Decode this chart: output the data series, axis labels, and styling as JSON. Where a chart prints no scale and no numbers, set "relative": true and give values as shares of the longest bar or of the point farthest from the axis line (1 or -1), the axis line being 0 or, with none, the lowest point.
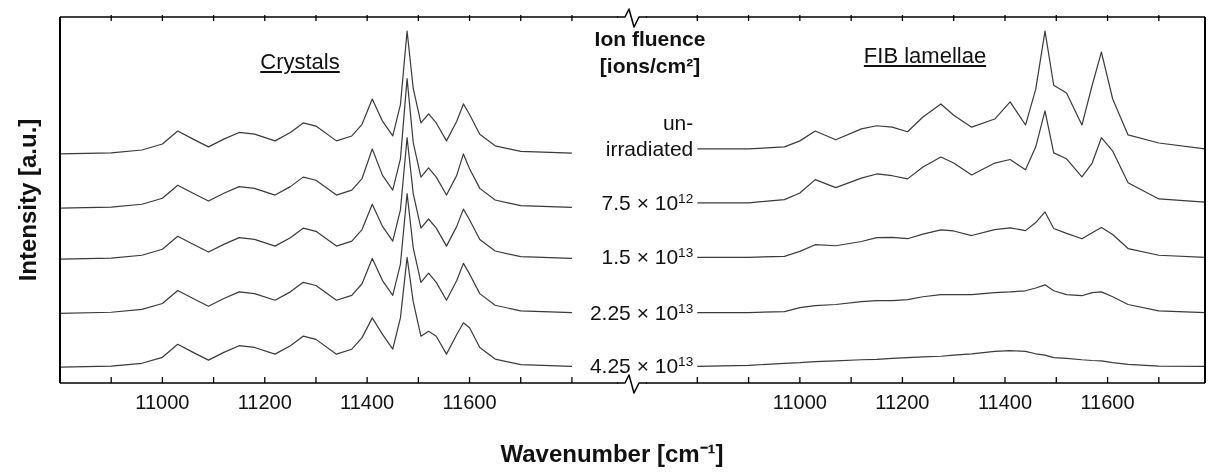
{
  "chart_data": [
    {
      "type": "line",
      "title": "Crystals",
      "xlabel": "Wavenumber [cm⁻¹]",
      "ylabel": "Intensity [a.u.]",
      "relative": true,
      "xlim": [
        10800,
        11890
      ],
      "xticks": [
        {
          "value": 10900,
          "label": null
        },
        11000,
        {
          "value": 11100,
          "label": null
        },
        11200,
        {
          "value": 11300,
          "label": null
        },
        11400,
        {
          "value": 11500,
          "label": null
        },
        11600,
        {
          "value": 11700,
          "label": null
        },
        {
          "value": 11800,
          "label": null
        }
      ],
      "x": [
        10800,
        10900,
        10960,
        11000,
        11030,
        11060,
        11090,
        11120,
        11150,
        11180,
        11220,
        11250,
        11275,
        11300,
        11340,
        11370,
        11390,
        11410,
        11430,
        11450,
        11465,
        11478,
        11490,
        11505,
        11520,
        11535,
        11555,
        11575,
        11588,
        11600,
        11620,
        11650,
        11700,
        11800
      ],
      "series": [
        {
          "color": "#3a3a3a",
          "values": [
            0.651,
            0.654,
            0.662,
            0.679,
            0.716,
            0.693,
            0.671,
            0.693,
            0.712,
            0.707,
            0.688,
            0.712,
            0.739,
            0.73,
            0.688,
            0.702,
            0.735,
            0.807,
            0.744,
            0.702,
            0.791,
            1.0,
            0.837,
            0.739,
            0.765,
            0.739,
            0.688,
            0.744,
            0.793,
            0.763,
            0.707,
            0.674,
            0.658,
            0.653
          ]
        },
        {
          "color": "#3a3a3a",
          "values": [
            0.497,
            0.5,
            0.508,
            0.525,
            0.562,
            0.539,
            0.517,
            0.539,
            0.558,
            0.553,
            0.534,
            0.558,
            0.585,
            0.576,
            0.534,
            0.548,
            0.581,
            0.665,
            0.59,
            0.548,
            0.637,
            0.865,
            0.683,
            0.585,
            0.611,
            0.585,
            0.534,
            0.59,
            0.651,
            0.609,
            0.553,
            0.52,
            0.504,
            0.499
          ]
        },
        {
          "color": "#3a3a3a",
          "values": [
            0.352,
            0.355,
            0.363,
            0.38,
            0.417,
            0.394,
            0.372,
            0.394,
            0.413,
            0.408,
            0.389,
            0.413,
            0.44,
            0.431,
            0.389,
            0.403,
            0.436,
            0.508,
            0.445,
            0.403,
            0.492,
            0.697,
            0.538,
            0.44,
            0.466,
            0.44,
            0.389,
            0.445,
            0.494,
            0.464,
            0.408,
            0.375,
            0.359,
            0.354
          ]
        },
        {
          "color": "#3a3a3a",
          "values": [
            0.198,
            0.201,
            0.209,
            0.226,
            0.263,
            0.24,
            0.218,
            0.24,
            0.259,
            0.254,
            0.235,
            0.259,
            0.286,
            0.277,
            0.235,
            0.249,
            0.282,
            0.354,
            0.291,
            0.249,
            0.338,
            0.538,
            0.384,
            0.286,
            0.312,
            0.286,
            0.235,
            0.291,
            0.34,
            0.31,
            0.254,
            0.221,
            0.205,
            0.2
          ]
        },
        {
          "color": "#3a3a3a",
          "values": [
            0.045,
            0.048,
            0.056,
            0.073,
            0.11,
            0.087,
            0.065,
            0.087,
            0.106,
            0.101,
            0.082,
            0.106,
            0.133,
            0.124,
            0.082,
            0.096,
            0.129,
            0.185,
            0.138,
            0.096,
            0.185,
            0.357,
            0.231,
            0.133,
            0.147,
            0.133,
            0.082,
            0.138,
            0.171,
            0.157,
            0.101,
            0.068,
            0.052,
            0.047
          ]
        }
      ]
    },
    {
      "type": "line",
      "title": "FIB lamellae",
      "legend_title": "Ion fluence [ions/cm²]",
      "relative": true,
      "xlim": [
        10700,
        11790
      ],
      "xticks": [
        {
          "value": 10800,
          "label": null
        },
        {
          "value": 10900,
          "label": null
        },
        11000,
        {
          "value": 11100,
          "label": null
        },
        11200,
        {
          "value": 11300,
          "label": null
        },
        11400,
        {
          "value": 11500,
          "label": null
        },
        11600,
        {
          "value": 11700,
          "label": null
        }
      ],
      "x": [
        10800,
        10900,
        10970,
        11000,
        11030,
        11070,
        11120,
        11150,
        11180,
        11210,
        11240,
        11275,
        11300,
        11335,
        11380,
        11410,
        11440,
        11460,
        11478,
        11495,
        11520,
        11550,
        11570,
        11588,
        11610,
        11640,
        11700,
        11790
      ],
      "series": [
        {
          "name": "un-irradiated",
          "color": "#3a3a3a",
          "values": [
            0.665,
            0.665,
            0.671,
            0.688,
            0.716,
            0.691,
            0.722,
            0.731,
            0.727,
            0.714,
            0.756,
            0.793,
            0.761,
            0.727,
            0.75,
            0.799,
            0.733,
            0.835,
            1.0,
            0.846,
            0.824,
            0.733,
            0.846,
            0.94,
            0.807,
            0.705,
            0.682,
            0.665
          ]
        },
        {
          "name": "7.5 × 10$^{12}$",
          "color": "#3a3a3a",
          "values": [
            0.512,
            0.512,
            0.521,
            0.54,
            0.578,
            0.555,
            0.582,
            0.594,
            0.589,
            0.58,
            0.614,
            0.642,
            0.625,
            0.591,
            0.625,
            0.635,
            0.606,
            0.671,
            0.773,
            0.654,
            0.637,
            0.586,
            0.625,
            0.697,
            0.659,
            0.569,
            0.523,
            0.514
          ]
        },
        {
          "name": "1.5 × 10$^{13}$",
          "color": "#3a3a3a",
          "values": [
            0.357,
            0.357,
            0.36,
            0.374,
            0.393,
            0.39,
            0.402,
            0.413,
            0.414,
            0.41,
            0.423,
            0.435,
            0.432,
            0.419,
            0.436,
            0.441,
            0.433,
            0.456,
            0.486,
            0.439,
            0.425,
            0.41,
            0.427,
            0.442,
            0.422,
            0.382,
            0.363,
            0.357
          ]
        },
        {
          "name": "2.25 × 10$^{13}$",
          "color": "#3a3a3a",
          "values": [
            0.2,
            0.2,
            0.203,
            0.214,
            0.22,
            0.223,
            0.231,
            0.234,
            0.234,
            0.237,
            0.245,
            0.251,
            0.251,
            0.251,
            0.257,
            0.259,
            0.262,
            0.27,
            0.279,
            0.262,
            0.251,
            0.248,
            0.257,
            0.259,
            0.245,
            0.223,
            0.205,
            0.2
          ]
        },
        {
          "name": "4.25 × 10$^{13}$",
          "color": "#3a3a3a",
          "values": [
            0.047,
            0.05,
            0.056,
            0.058,
            0.061,
            0.063,
            0.066,
            0.067,
            0.07,
            0.072,
            0.074,
            0.076,
            0.079,
            0.083,
            0.09,
            0.092,
            0.09,
            0.083,
            0.079,
            0.072,
            0.07,
            0.066,
            0.064,
            0.063,
            0.058,
            0.053,
            0.048,
            0.047
          ]
        }
      ]
    }
  ]
}
